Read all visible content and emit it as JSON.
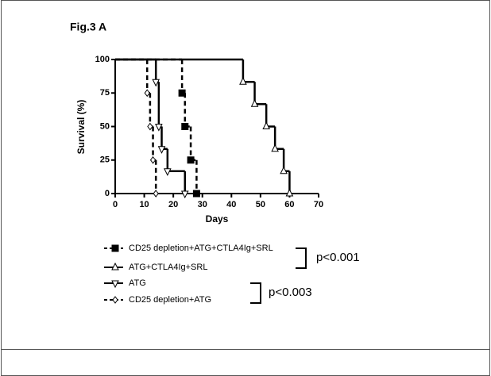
{
  "chart_data": {
    "type": "survival",
    "title": "Fig.3 A",
    "x_label": "Days",
    "y_label": "Survival (%)",
    "xlim": [
      0,
      70
    ],
    "ylim": [
      0,
      100
    ],
    "xticks": [
      0,
      10,
      20,
      30,
      40,
      50,
      60,
      70
    ],
    "yticks": [
      0,
      25,
      50,
      75,
      100
    ],
    "series": [
      {
        "name": "CD25 depletion+ATG+CTLA4Ig+SRL",
        "color": "#000000",
        "marker": "square",
        "filled": true,
        "dashed": true,
        "x": [
          0,
          23,
          24,
          26,
          28
        ],
        "values": [
          100,
          75,
          50,
          25,
          0
        ]
      },
      {
        "name": "ATG+CTLA4Ig+SRL",
        "color": "#000000",
        "marker": "triangle-up",
        "filled": false,
        "dashed": false,
        "x": [
          0,
          44,
          48,
          52,
          55,
          58,
          60
        ],
        "values": [
          100,
          83.3,
          66.7,
          50,
          33.3,
          16.7,
          0
        ]
      },
      {
        "name": "ATG",
        "color": "#000000",
        "marker": "triangle-down",
        "filled": false,
        "dashed": false,
        "x": [
          0,
          14,
          15,
          16,
          18,
          24
        ],
        "values": [
          100,
          83.3,
          50,
          33.3,
          16.7,
          0
        ]
      },
      {
        "name": "CD25 depletion+ATG",
        "color": "#000000",
        "marker": "diamond",
        "filled": false,
        "dashed": true,
        "x": [
          0,
          11,
          12,
          13,
          14
        ],
        "values": [
          100,
          75,
          50,
          25,
          0
        ]
      }
    ],
    "annotations": [
      {
        "text": "p<0.001",
        "series": [
          0,
          1
        ]
      },
      {
        "text": "p<0.003",
        "series": [
          2,
          3
        ]
      }
    ]
  }
}
